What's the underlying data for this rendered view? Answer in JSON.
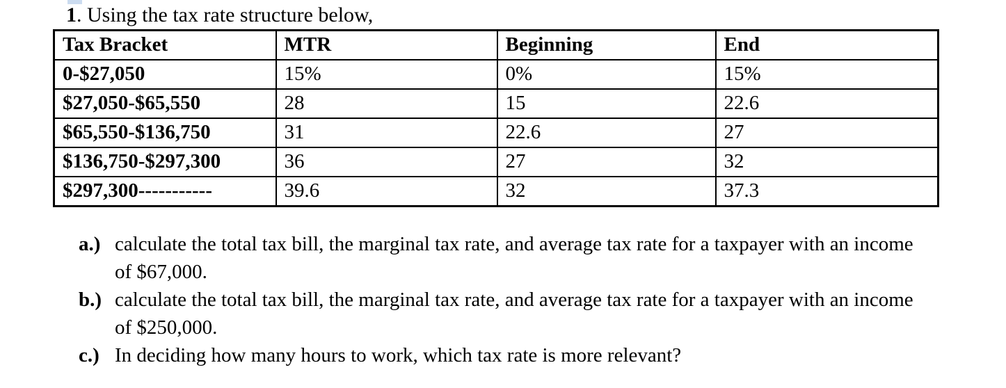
{
  "page": {
    "title_number": "1",
    "title_rest": ". Using the tax rate structure below,"
  },
  "table": {
    "columns": [
      "Tax Bracket",
      "MTR",
      "Beginning",
      "End"
    ],
    "rows": [
      [
        "0-$27,050",
        "15%",
        "0%",
        "15%"
      ],
      [
        "$27,050-$65,550",
        "28",
        "15",
        "22.6"
      ],
      [
        "$65,550-$136,750",
        "31",
        "22.6",
        "27"
      ],
      [
        "$136,750-$297,300",
        "36",
        "27",
        "32"
      ],
      [
        "$297,300-----------",
        "39.6",
        "32",
        "37.3"
      ]
    ]
  },
  "questions": [
    {
      "label": "a.)",
      "text": "calculate the total tax bill, the marginal tax rate, and average tax rate for a taxpayer with an income of $67,000."
    },
    {
      "label": "b.)",
      "text": "calculate the total tax bill, the marginal tax rate, and average tax rate for a taxpayer with an income of $250,000."
    },
    {
      "label": "c.)",
      "text": "In deciding how many hours to work, which tax rate is more relevant?"
    }
  ],
  "colors": {
    "text": "#000000",
    "border": "#000000",
    "selection_mark": "#ccdcf0",
    "background": "#ffffff"
  }
}
